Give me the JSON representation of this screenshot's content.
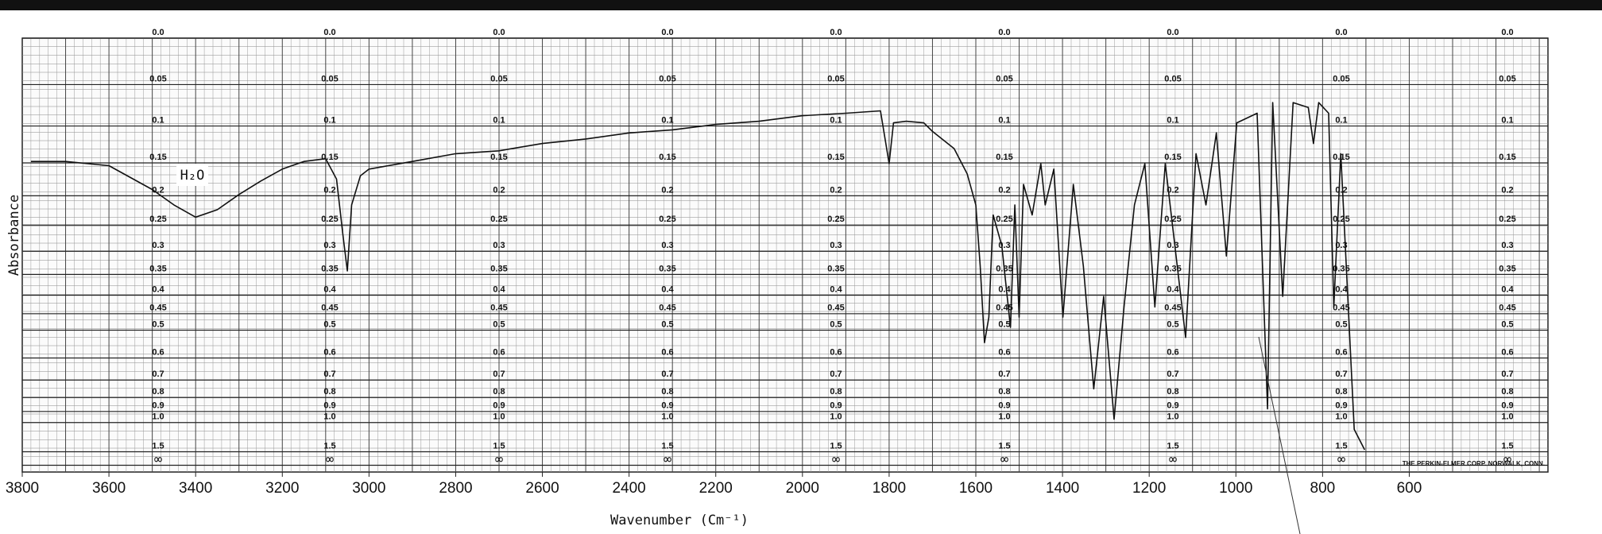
{
  "chart_data": {
    "type": "line",
    "x_label": "Wavenumber (Cm⁻¹)",
    "y_label": "Absorbance",
    "annotation": "H₂O",
    "footer": "THE PERKIN-ELMER CORP. NORWALK, CONN.",
    "color": "#111111",
    "grid": true,
    "yscale": "absorbance",
    "xlim": [
      3800,
      280
    ],
    "xticks": [
      3800,
      3600,
      3400,
      3200,
      3000,
      2800,
      2600,
      2400,
      2200,
      2000,
      1800,
      1600,
      1400,
      1200,
      1000,
      800,
      600
    ],
    "yticks": [
      {
        "value": 0,
        "label": "0.0"
      },
      0.05,
      0.1,
      0.15,
      0.2,
      0.25,
      0.3,
      0.35,
      0.4,
      0.45,
      0.5,
      0.6,
      0.7,
      0.8,
      0.9,
      {
        "value": 1,
        "label": "1.0"
      },
      1.5,
      {
        "value": null,
        "label": "∞"
      }
    ],
    "x": [
      3780,
      3700,
      3600,
      3500,
      3450,
      3400,
      3350,
      3300,
      3250,
      3200,
      3150,
      3100,
      3075,
      3060,
      3050,
      3040,
      3020,
      3000,
      2900,
      2800,
      2700,
      2600,
      2500,
      2400,
      2300,
      2200,
      2100,
      2000,
      1900,
      1820,
      1800,
      1790,
      1760,
      1720,
      1700,
      1650,
      1620,
      1600,
      1590,
      1580,
      1570,
      1560,
      1540,
      1520,
      1510,
      1500,
      1490,
      1470,
      1450,
      1440,
      1420,
      1399,
      1375,
      1352,
      1328,
      1305,
      1281,
      1258,
      1234,
      1210,
      1187,
      1163,
      1116,
      1092,
      1069,
      1045,
      1022,
      998,
      951,
      927,
      915,
      892,
      868,
      833,
      821,
      809,
      786,
      774,
      758,
      727,
      703
    ],
    "values": [
      0.148,
      0.148,
      0.154,
      0.19,
      0.215,
      0.236,
      0.223,
      0.198,
      0.177,
      0.159,
      0.148,
      0.144,
      0.174,
      0.269,
      0.342,
      0.215,
      0.169,
      0.159,
      0.148,
      0.137,
      0.133,
      0.123,
      0.117,
      0.109,
      0.105,
      0.098,
      0.094,
      0.087,
      0.084,
      0.081,
      0.151,
      0.096,
      0.094,
      0.096,
      0.107,
      0.13,
      0.166,
      0.215,
      0.331,
      0.542,
      0.46,
      0.232,
      0.289,
      0.491,
      0.215,
      0.46,
      0.182,
      0.232,
      0.151,
      0.215,
      0.159,
      0.46,
      0.182,
      0.331,
      0.747,
      0.403,
      0.967,
      0.431,
      0.215,
      0.151,
      0.431,
      0.151,
      0.524,
      0.137,
      0.215,
      0.109,
      0.31,
      0.096,
      0.084,
      0.879,
      0.071,
      0.403,
      0.071,
      0.077,
      0.123,
      0.071,
      0.084,
      0.431,
      0.137,
      1.076,
      1.44
    ]
  }
}
